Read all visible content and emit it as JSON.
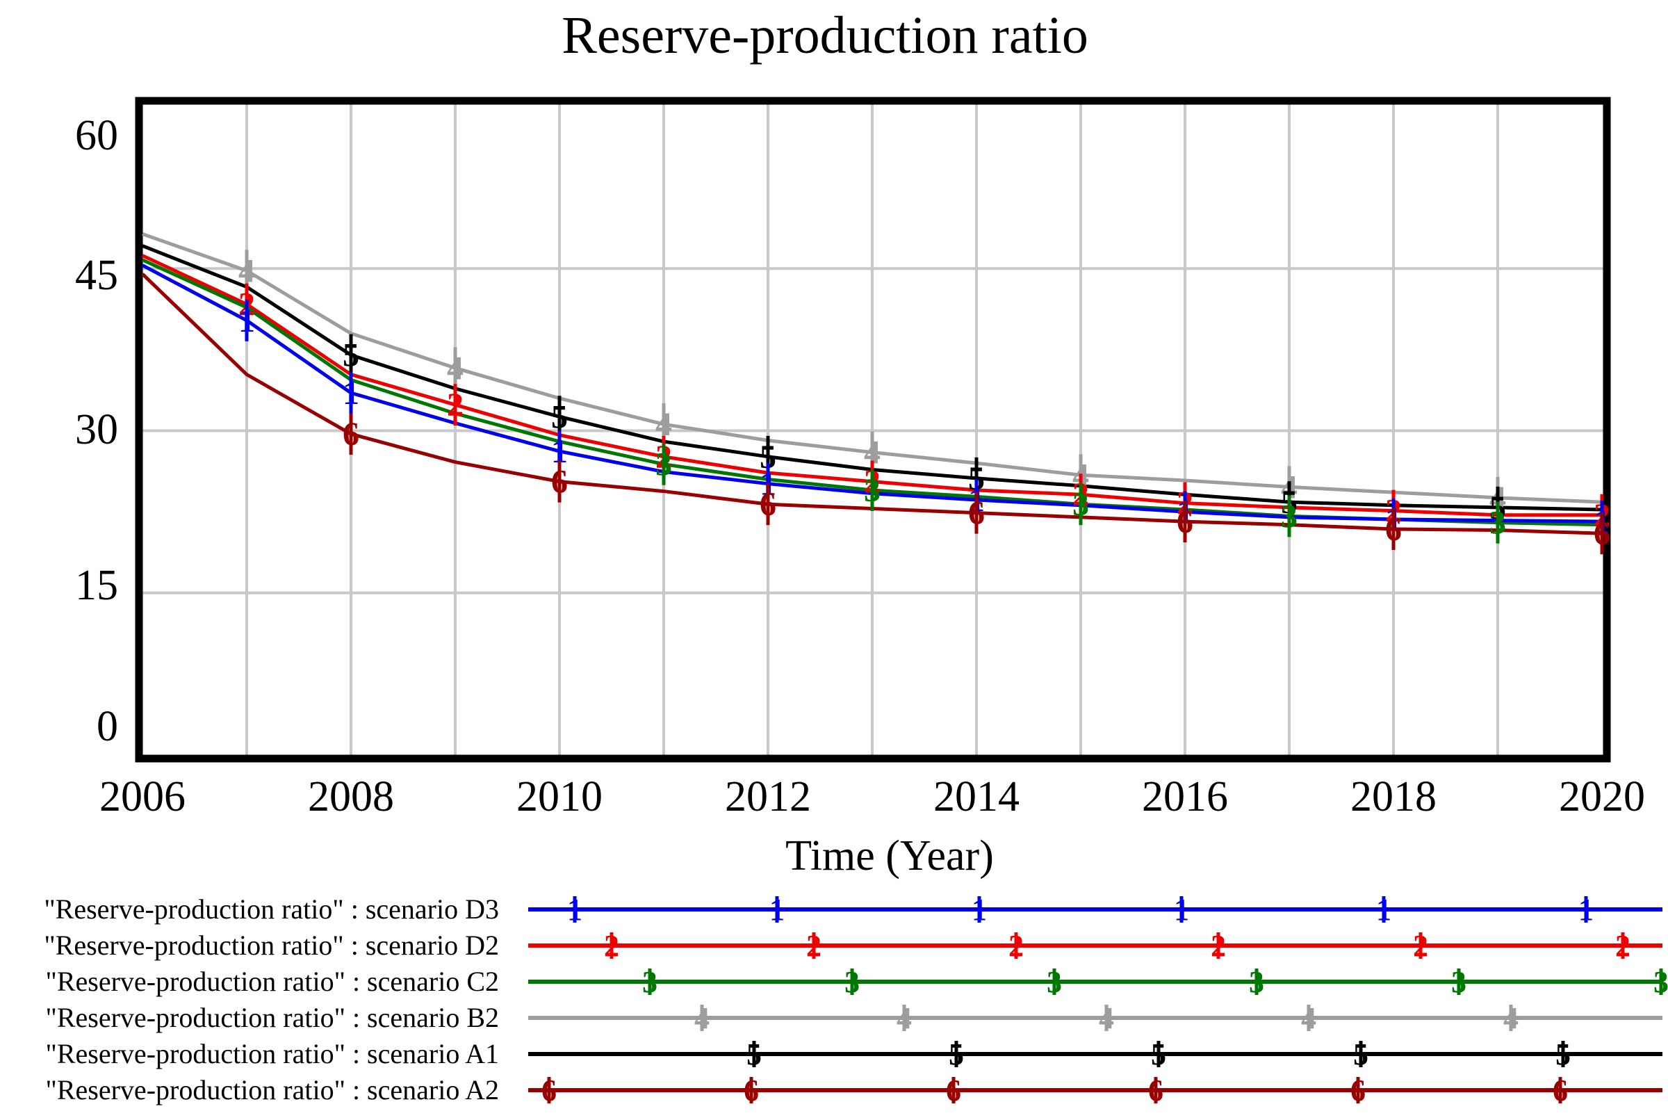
{
  "chart_data": {
    "type": "line",
    "title": "Reserve-production ratio",
    "xlabel": "Time (Year)",
    "x_tick_labels": [
      "2006",
      "2008",
      "2010",
      "2012",
      "2014",
      "2016",
      "2018",
      "2020"
    ],
    "y_tick_labels": [
      "60",
      "45",
      "30",
      "15",
      "0"
    ],
    "y_tick_values": [
      60,
      45,
      30,
      15,
      0
    ],
    "x_tick_values": [
      2006,
      2008,
      2010,
      2012,
      2014,
      2016,
      2018,
      2020
    ],
    "xlim": [
      2006,
      2020
    ],
    "ylim": [
      0,
      60
    ],
    "grid": true,
    "grid_color": "#c8c8c8",
    "axis_color": "#000000",
    "legend_position": "bottom-left",
    "years": [
      2006,
      2007,
      2008,
      2009,
      2010,
      2011,
      2012,
      2013,
      2014,
      2015,
      2016,
      2017,
      2018,
      2019,
      2020
    ],
    "series": [
      {
        "label": "\"Reserve-production ratio\" : scenario D3",
        "scenario": "scenario D3",
        "marker": "1",
        "color": "#0000ee",
        "values": [
          45.3,
          40.2,
          33.5,
          30.7,
          28.1,
          26.2,
          25.1,
          24.2,
          23.6,
          23.1,
          22.5,
          22.0,
          21.8,
          21.7,
          21.6
        ],
        "marker_years": [
          2007,
          2008,
          2010,
          2012,
          2014,
          2016,
          2018,
          2020
        ]
      },
      {
        "label": "\"Reserve-production ratio\" : scenario D2",
        "scenario": "scenario D2",
        "marker": "2",
        "color": "#ee0000",
        "values": [
          46.2,
          41.7,
          35.2,
          32.4,
          29.6,
          27.6,
          26.1,
          25.3,
          24.5,
          24.1,
          23.3,
          22.9,
          22.6,
          22.2,
          22.2
        ],
        "marker_years": [
          2007,
          2009,
          2011,
          2013,
          2015,
          2016,
          2018,
          2020
        ]
      },
      {
        "label": "\"Reserve-production ratio\" : scenario C2",
        "scenario": "scenario C2",
        "marker": "3",
        "color": "#007700",
        "values": [
          45.8,
          41.4,
          34.7,
          31.6,
          29.0,
          26.9,
          25.5,
          24.5,
          23.9,
          23.2,
          22.7,
          22.1,
          21.8,
          21.5,
          21.3
        ],
        "marker_years": [
          2011,
          2013,
          2015,
          2017,
          2019
        ]
      },
      {
        "label": "\"Reserve-production ratio\" : scenario B2",
        "scenario": "scenario B2",
        "marker": "4",
        "color": "#9d9d9d",
        "values": [
          48.2,
          44.8,
          39.0,
          35.8,
          33.0,
          30.6,
          29.1,
          28.0,
          27.0,
          25.9,
          25.4,
          24.8,
          24.3,
          23.8,
          23.4
        ],
        "marker_years": [
          2007,
          2009,
          2011,
          2013,
          2015,
          2017,
          2019
        ]
      },
      {
        "label": "\"Reserve-production ratio\" : scenario A1",
        "scenario": "scenario A1",
        "marker": "5",
        "color": "#000000",
        "values": [
          47.1,
          43.3,
          37.0,
          33.9,
          31.3,
          29.0,
          27.6,
          26.4,
          25.6,
          24.9,
          24.1,
          23.4,
          23.1,
          22.9,
          22.7
        ],
        "marker_years": [
          2008,
          2010,
          2012,
          2014,
          2017,
          2019
        ]
      },
      {
        "label": "\"Reserve-production ratio\" : scenario A2",
        "scenario": "scenario A2",
        "marker": "6",
        "color": "#990000",
        "values": [
          44.5,
          35.2,
          29.7,
          27.1,
          25.3,
          24.4,
          23.2,
          22.8,
          22.4,
          22.0,
          21.6,
          21.3,
          20.9,
          20.8,
          20.5
        ],
        "marker_years": [
          2008,
          2010,
          2012,
          2014,
          2016,
          2018,
          2020
        ]
      }
    ]
  }
}
